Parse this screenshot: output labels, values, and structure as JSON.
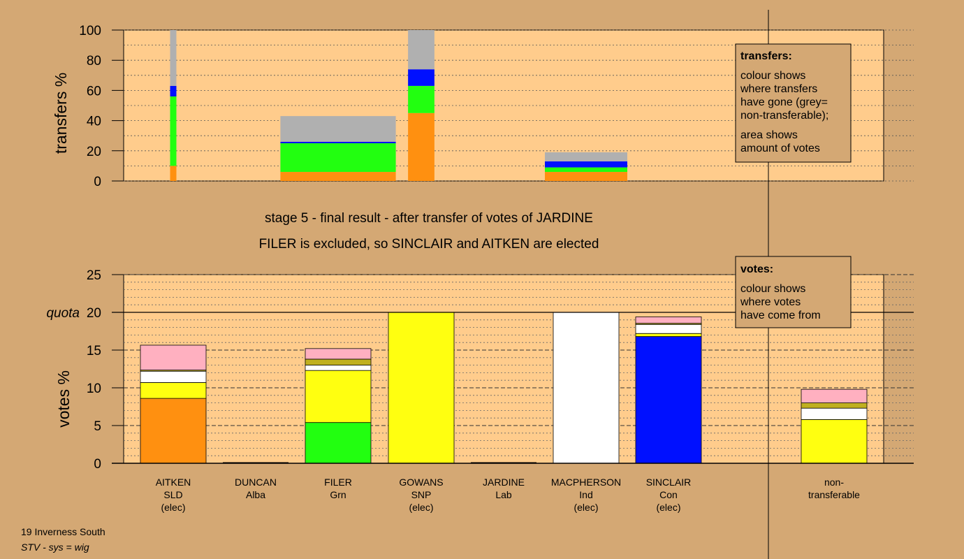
{
  "chart_data": [
    {
      "type": "bar",
      "subtype": "stacked",
      "name": "transfers",
      "ylabel": "transfers %",
      "ylim": [
        0,
        100
      ],
      "yticks": [
        0,
        20,
        40,
        60,
        80,
        100
      ],
      "segment_order": [
        "SLD",
        "Grn",
        "Con",
        "non-transferable"
      ],
      "colors": {
        "SLD": "#ff9010",
        "Grn": "#22ff10",
        "Con": "#0010ff",
        "non-transferable": "#b0b0b0"
      },
      "bars": [
        {
          "to": "AITKEN",
          "width": 1,
          "segments": [
            10,
            46,
            7,
            37
          ]
        },
        {
          "to": "FILER",
          "width": 7,
          "segments": [
            6,
            19,
            1,
            17
          ]
        },
        {
          "to": "GOWANS",
          "width": 1.6,
          "segments": [
            45,
            18,
            11,
            26
          ]
        },
        {
          "to": "MACPHERSON",
          "width": 5,
          "segments": [
            6,
            3,
            4,
            6
          ]
        }
      ],
      "legend": {
        "title": "transfers:",
        "lines_1": [
          "colour shows",
          "where transfers",
          "have gone (grey=",
          "non-transferable);"
        ],
        "lines_2": [
          "area shows",
          "amount of votes"
        ]
      }
    },
    {
      "type": "bar",
      "subtype": "stacked",
      "name": "votes",
      "ylabel": "votes %",
      "ylim": [
        0,
        25
      ],
      "yticks": [
        0,
        5,
        10,
        15,
        20,
        25
      ],
      "quota": 20,
      "quota_label": "quota",
      "categories": [
        "AITKEN",
        "DUNCAN",
        "FILER",
        "GOWANS",
        "JARDINE",
        "MACPHERSON",
        "SINCLAIR",
        "non-transferable"
      ],
      "parties": [
        "SLD",
        "Alba",
        "Grn",
        "SNP",
        "Lab",
        "Ind",
        "Con",
        ""
      ],
      "status": [
        "(elec)",
        "",
        "",
        "(elec)",
        "",
        "(elec)",
        "(elec)",
        ""
      ],
      "colors": {
        "SLD": "#ff9010",
        "Grn": "#22ff10",
        "SNP": "#ffff10",
        "Ind": "#ffffff",
        "Con": "#0010ff",
        "Alba": "#c0b020",
        "Lab": "#ffb0c0"
      },
      "stacks": [
        [
          {
            "p": "SLD",
            "v": 8.6
          },
          {
            "p": "SNP",
            "v": 2.1
          },
          {
            "p": "Ind",
            "v": 1.5
          },
          {
            "p": "Alba",
            "v": 0.15
          },
          {
            "p": "Lab",
            "v": 3.3
          }
        ],
        [],
        [
          {
            "p": "Grn",
            "v": 5.4
          },
          {
            "p": "SNP",
            "v": 6.9
          },
          {
            "p": "Ind",
            "v": 0.7
          },
          {
            "p": "Alba",
            "v": 0.8
          },
          {
            "p": "Lab",
            "v": 1.4
          }
        ],
        [
          {
            "p": "SNP",
            "v": 20
          }
        ],
        [],
        [
          {
            "p": "Ind",
            "v": 20
          }
        ],
        [
          {
            "p": "Con",
            "v": 16.8
          },
          {
            "p": "SNP",
            "v": 0.4
          },
          {
            "p": "Ind",
            "v": 1.2
          },
          {
            "p": "Alba",
            "v": 0.15
          },
          {
            "p": "Lab",
            "v": 0.85
          }
        ],
        [
          {
            "p": "SNP",
            "v": 5.8
          },
          {
            "p": "Ind",
            "v": 1.5
          },
          {
            "p": "Alba",
            "v": 0.7
          },
          {
            "p": "Lab",
            "v": 1.8
          }
        ]
      ],
      "legend": {
        "title": "votes:",
        "lines": [
          "colour shows",
          "where votes",
          "have come from"
        ]
      }
    }
  ],
  "headings": {
    "line1": "stage 5 - final result - after transfer of votes of JARDINE",
    "line2": "FILER is excluded, so SINCLAIR and AITKEN are elected"
  },
  "non_transferable_label": [
    "non-",
    "transferable"
  ],
  "footer": {
    "constituency": "19 Inverness South",
    "system": "STV - sys = wig"
  }
}
